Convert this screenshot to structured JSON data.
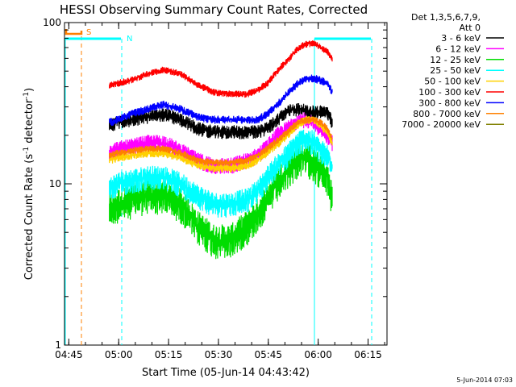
{
  "chart_data": {
    "type": "line",
    "title": "HESSI Observing Summary Count Rates, Corrected",
    "xlabel": "Start Time (05-Jun-14 04:43:42)",
    "ylabel_parts": [
      "Corrected Count Rate (s",
      "-1",
      " detector",
      "-1",
      ")"
    ],
    "scale_y": "log",
    "xlim_minutes": [
      0,
      97
    ],
    "ylim": [
      1,
      100
    ],
    "x_ticks": [
      "04:45",
      "05:00",
      "05:15",
      "05:30",
      "05:45",
      "06:00",
      "06:15"
    ],
    "x_tick_minutes": [
      1.3,
      16.3,
      31.3,
      46.3,
      61.3,
      76.3,
      91.3
    ],
    "y_ticks": [
      "1",
      "10",
      "100"
    ],
    "y_tick_values": [
      1,
      10,
      100
    ],
    "legend_header": [
      "Det 1,3,5,6,7,9,",
      "Att 0"
    ],
    "series": [
      {
        "name": "3 - 6 keV",
        "color": "#000000",
        "x": [
          13.5,
          16,
          20,
          25,
          30,
          35,
          40,
          45,
          50,
          55,
          58,
          61,
          64,
          67,
          69,
          71,
          73,
          75,
          77,
          79,
          80.5
        ],
        "y": [
          23,
          24,
          25,
          26,
          27,
          25,
          22,
          21,
          21,
          21,
          21,
          22,
          25,
          28,
          29,
          29,
          28,
          28,
          28,
          28,
          24
        ]
      },
      {
        "name": "6 - 12 keV",
        "color": "#ff00ff",
        "x": [
          13.5,
          16,
          20,
          25,
          30,
          35,
          40,
          45,
          50,
          55,
          58,
          61,
          64,
          67,
          69,
          71,
          73,
          75,
          77,
          79,
          80.5
        ],
        "y": [
          16,
          16.5,
          17,
          18,
          18,
          16,
          14,
          13,
          13,
          14,
          15,
          17,
          20,
          22,
          24,
          25,
          25,
          24,
          22,
          20,
          18
        ]
      },
      {
        "name": "12 - 25 keV",
        "color": "#00dd00",
        "x": [
          13.5,
          16,
          20,
          25,
          30,
          35,
          40,
          45,
          50,
          55,
          58,
          61,
          64,
          67,
          69,
          71,
          73,
          75,
          77,
          79,
          80.5
        ],
        "y": [
          7,
          7.5,
          8,
          8.5,
          8.5,
          7.5,
          5.5,
          4.5,
          4.5,
          5.5,
          6.5,
          8,
          10,
          12,
          13.5,
          14.5,
          14.5,
          13.5,
          12,
          11,
          8
        ]
      },
      {
        "name": "25 - 50 keV",
        "color": "#00ffff",
        "x": [
          13.5,
          16,
          20,
          25,
          30,
          35,
          40,
          45,
          50,
          55,
          58,
          61,
          64,
          67,
          69,
          71,
          73,
          75,
          77,
          79,
          80.5
        ],
        "y": [
          9.5,
          10,
          10.5,
          11,
          11,
          10,
          8.5,
          7.5,
          7.5,
          8,
          9,
          11,
          13,
          15,
          17,
          18.5,
          19,
          18,
          16,
          15,
          13
        ]
      },
      {
        "name": "50 - 100 keV",
        "color": "#ffd000",
        "x": [
          13.5,
          16,
          20,
          25,
          30,
          35,
          40,
          45,
          50,
          55,
          58,
          61,
          64,
          67,
          69,
          71,
          73,
          75,
          77,
          79,
          80.5
        ],
        "y": [
          14,
          14.5,
          15,
          15.5,
          15.5,
          14.5,
          13,
          12.5,
          12.5,
          13,
          14,
          15.5,
          17.5,
          20,
          22,
          24,
          25,
          25,
          23,
          21,
          18
        ]
      },
      {
        "name": "100 - 300 keV",
        "color": "#ff0000",
        "x": [
          13.5,
          16,
          20,
          25,
          30,
          35,
          40,
          45,
          50,
          55,
          58,
          61,
          64,
          67,
          69,
          71,
          73,
          75,
          77,
          79,
          80.5
        ],
        "y": [
          41,
          42,
          44,
          48,
          51,
          48,
          41,
          37,
          36,
          36,
          38,
          42,
          50,
          58,
          65,
          71,
          74,
          74,
          70,
          66,
          60
        ]
      },
      {
        "name": "300 - 800 keV",
        "color": "#0000ff",
        "x": [
          13.5,
          16,
          20,
          25,
          30,
          35,
          40,
          45,
          50,
          55,
          58,
          61,
          64,
          67,
          69,
          71,
          73,
          75,
          77,
          79,
          80.5
        ],
        "y": [
          24,
          25,
          27,
          29,
          31,
          29,
          26,
          25,
          25,
          25,
          25,
          27,
          31,
          36,
          40,
          43,
          45,
          45,
          44,
          42,
          37
        ]
      },
      {
        "name": "800 - 7000 keV",
        "color": "#ff8000",
        "x": [
          13.5,
          16,
          20,
          25,
          30,
          35,
          40,
          45,
          50,
          55,
          58,
          61,
          64,
          67,
          69,
          71,
          73,
          75,
          77,
          79,
          80.5
        ],
        "y": [
          15,
          15.5,
          16,
          16.5,
          16.5,
          15.5,
          14,
          13.5,
          13.5,
          14,
          15,
          16.5,
          18.5,
          21,
          23,
          24.5,
          25,
          25,
          24,
          22,
          19
        ]
      },
      {
        "name": "7000 - 20000 keV",
        "color": "#808000",
        "x": [],
        "y": []
      }
    ],
    "markers": [
      {
        "label": "S",
        "color": "#ff8000"
      },
      {
        "label": "N",
        "color": "#00ffff"
      }
    ],
    "footer_date": "5-Jun-2014 07:03"
  }
}
